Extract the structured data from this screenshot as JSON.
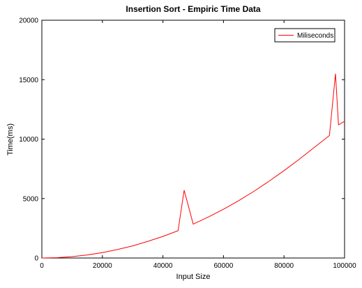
{
  "chart_data": {
    "type": "line",
    "title": "Insertion Sort - Empiric Time Data",
    "xlabel": "Input Size",
    "ylabel": "Time(ms)",
    "xlim": [
      0,
      100000
    ],
    "ylim": [
      0,
      20000
    ],
    "xticks": [
      0,
      20000,
      40000,
      60000,
      80000,
      100000
    ],
    "yticks": [
      0,
      5000,
      10000,
      15000,
      20000
    ],
    "legend": {
      "position": "top-right",
      "entries": [
        "Miliseconds"
      ]
    },
    "grid": false,
    "series_color": "#ff0000",
    "series": [
      {
        "name": "Miliseconds",
        "x": [
          0,
          5000,
          10000,
          15000,
          20000,
          25000,
          30000,
          35000,
          40000,
          45000,
          47000,
          50000,
          55000,
          60000,
          65000,
          70000,
          75000,
          80000,
          85000,
          90000,
          95000,
          97000,
          98000,
          100000
        ],
        "values": [
          0,
          30,
          115,
          260,
          450,
          720,
          1020,
          1400,
          1820,
          2300,
          5700,
          2850,
          3450,
          4100,
          4820,
          5600,
          6450,
          7350,
          8300,
          9300,
          10300,
          15500,
          11200,
          11500
        ]
      }
    ]
  }
}
